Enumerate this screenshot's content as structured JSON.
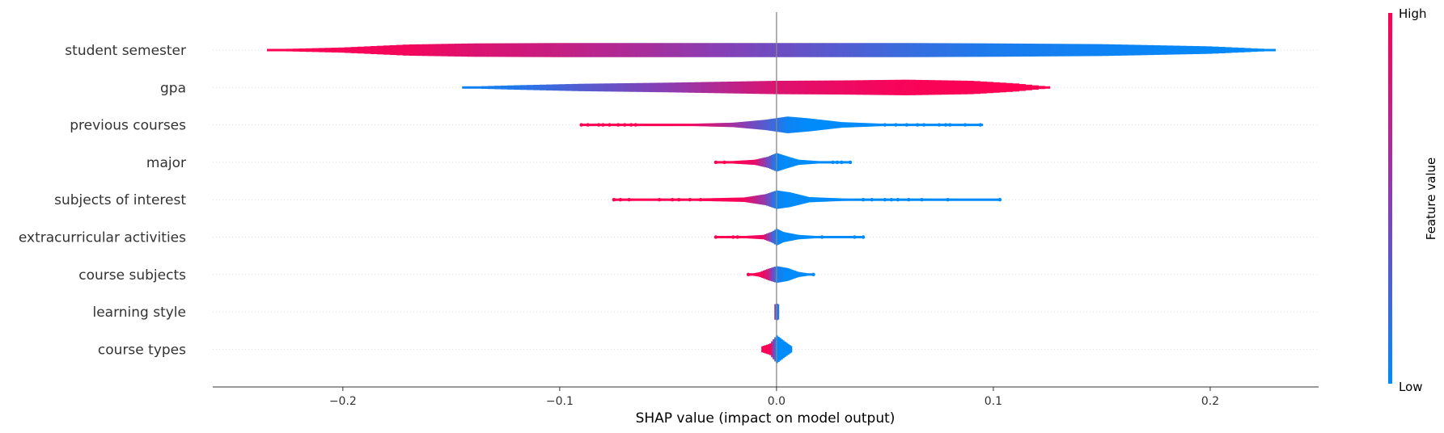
{
  "chart_data": {
    "type": "violin",
    "xlabel": "SHAP value (impact on model output)",
    "xlim": [
      -0.26,
      0.25
    ],
    "xticks": [
      -0.2,
      -0.1,
      0.0,
      0.1,
      0.2
    ],
    "xtick_labels": [
      "−0.2",
      "−0.1",
      "0.0",
      "0.1",
      "0.2"
    ],
    "colorbar": {
      "label": "Feature value",
      "high_label": "High",
      "low_label": "Low",
      "low_color": "#008bfb",
      "mid_color": "#8b3db3",
      "high_color": "#ff0052"
    },
    "features": [
      {
        "name": "student semester",
        "min": -0.235,
        "max": 0.23,
        "style": "band",
        "profile": [
          [
            -0.235,
            0.04,
            1.0
          ],
          [
            -0.2,
            0.14,
            0.97
          ],
          [
            -0.17,
            0.3,
            0.95
          ],
          [
            -0.14,
            0.36,
            0.85
          ],
          [
            -0.1,
            0.38,
            0.75
          ],
          [
            -0.06,
            0.38,
            0.62
          ],
          [
            -0.03,
            0.38,
            0.5
          ],
          [
            0.0,
            0.38,
            0.4
          ],
          [
            0.03,
            0.38,
            0.3
          ],
          [
            0.06,
            0.38,
            0.2
          ],
          [
            0.1,
            0.36,
            0.1
          ],
          [
            0.15,
            0.32,
            0.05
          ],
          [
            0.2,
            0.2,
            0.02
          ],
          [
            0.23,
            0.04,
            0.0
          ]
        ]
      },
      {
        "name": "gpa",
        "min": -0.145,
        "max": 0.126,
        "style": "band",
        "profile": [
          [
            -0.145,
            0.04,
            0.05
          ],
          [
            -0.12,
            0.12,
            0.12
          ],
          [
            -0.09,
            0.2,
            0.3
          ],
          [
            -0.05,
            0.26,
            0.5
          ],
          [
            -0.02,
            0.32,
            0.72
          ],
          [
            0.0,
            0.36,
            0.85
          ],
          [
            0.03,
            0.38,
            0.92
          ],
          [
            0.06,
            0.42,
            0.97
          ],
          [
            0.09,
            0.36,
            0.98
          ],
          [
            0.11,
            0.22,
            1.0
          ],
          [
            0.126,
            0.04,
            1.0
          ]
        ]
      },
      {
        "name": "previous courses",
        "min": -0.09,
        "max": 0.095,
        "style": "violin",
        "profile": [
          [
            -0.09,
            0.02,
            1.0
          ],
          [
            -0.06,
            0.04,
            1.0
          ],
          [
            -0.04,
            0.06,
            0.95
          ],
          [
            -0.02,
            0.12,
            0.6
          ],
          [
            -0.005,
            0.28,
            0.3
          ],
          [
            0.005,
            0.45,
            0.05
          ],
          [
            0.015,
            0.35,
            0.0
          ],
          [
            0.03,
            0.15,
            0.0
          ],
          [
            0.05,
            0.06,
            0.0
          ],
          [
            0.07,
            0.04,
            0.0
          ],
          [
            0.095,
            0.02,
            0.0
          ]
        ],
        "outliers": [
          [
            -0.09,
            1
          ],
          [
            -0.087,
            1
          ],
          [
            -0.082,
            1
          ],
          [
            -0.08,
            1
          ],
          [
            -0.077,
            1
          ],
          [
            -0.073,
            1
          ],
          [
            -0.07,
            1
          ],
          [
            -0.067,
            1
          ],
          [
            -0.065,
            1
          ],
          [
            0.05,
            0
          ],
          [
            0.055,
            0
          ],
          [
            0.06,
            0
          ],
          [
            0.065,
            0
          ],
          [
            0.068,
            0
          ],
          [
            0.075,
            0
          ],
          [
            0.078,
            0
          ],
          [
            0.08,
            0
          ],
          [
            0.087,
            0
          ],
          [
            0.094,
            0
          ]
        ]
      },
      {
        "name": "major",
        "min": -0.028,
        "max": 0.034,
        "style": "violin",
        "profile": [
          [
            -0.028,
            0.02,
            1.0
          ],
          [
            -0.02,
            0.07,
            1.0
          ],
          [
            -0.01,
            0.14,
            0.9
          ],
          [
            -0.004,
            0.3,
            0.4
          ],
          [
            0.0,
            0.5,
            0.05
          ],
          [
            0.004,
            0.35,
            0.0
          ],
          [
            0.01,
            0.14,
            0.0
          ],
          [
            0.02,
            0.06,
            0.0
          ],
          [
            0.034,
            0.02,
            0.0
          ]
        ],
        "outliers": [
          [
            -0.028,
            1
          ],
          [
            -0.024,
            1
          ],
          [
            0.026,
            0
          ],
          [
            0.028,
            0
          ],
          [
            0.03,
            0
          ],
          [
            0.034,
            0
          ]
        ]
      },
      {
        "name": "subjects of interest",
        "min": -0.075,
        "max": 0.103,
        "style": "violin",
        "profile": [
          [
            -0.075,
            0.02,
            1.0
          ],
          [
            -0.05,
            0.04,
            1.0
          ],
          [
            -0.03,
            0.08,
            1.0
          ],
          [
            -0.015,
            0.12,
            0.95
          ],
          [
            -0.005,
            0.3,
            0.5
          ],
          [
            0.0,
            0.5,
            0.05
          ],
          [
            0.006,
            0.4,
            0.0
          ],
          [
            0.015,
            0.14,
            0.0
          ],
          [
            0.03,
            0.07,
            0.0
          ],
          [
            0.05,
            0.04,
            0.0
          ],
          [
            0.103,
            0.02,
            0.0
          ]
        ],
        "outliers": [
          [
            -0.075,
            1
          ],
          [
            -0.072,
            1
          ],
          [
            -0.068,
            1
          ],
          [
            -0.054,
            1
          ],
          [
            -0.048,
            1
          ],
          [
            -0.045,
            1
          ],
          [
            -0.04,
            1
          ],
          [
            -0.035,
            1
          ],
          [
            0.04,
            0
          ],
          [
            0.044,
            0
          ],
          [
            0.05,
            0
          ],
          [
            0.053,
            0
          ],
          [
            0.056,
            0
          ],
          [
            0.061,
            0
          ],
          [
            0.067,
            0
          ],
          [
            0.079,
            0
          ],
          [
            0.103,
            0
          ]
        ]
      },
      {
        "name": "extracurricular activities",
        "min": -0.028,
        "max": 0.04,
        "style": "violin",
        "profile": [
          [
            -0.028,
            0.02,
            1.0
          ],
          [
            -0.015,
            0.06,
            1.0
          ],
          [
            -0.006,
            0.12,
            0.9
          ],
          [
            -0.002,
            0.3,
            0.3
          ],
          [
            0.0,
            0.45,
            0.05
          ],
          [
            0.003,
            0.28,
            0.0
          ],
          [
            0.01,
            0.12,
            0.0
          ],
          [
            0.02,
            0.05,
            0.0
          ],
          [
            0.04,
            0.02,
            0.0
          ]
        ],
        "outliers": [
          [
            -0.028,
            1
          ],
          [
            -0.02,
            1
          ],
          [
            -0.018,
            1
          ],
          [
            0.021,
            0
          ],
          [
            0.036,
            0
          ],
          [
            0.04,
            0
          ]
        ]
      },
      {
        "name": "course subjects",
        "min": -0.013,
        "max": 0.017,
        "style": "violin",
        "profile": [
          [
            -0.013,
            0.02,
            1.0
          ],
          [
            -0.008,
            0.12,
            1.0
          ],
          [
            -0.004,
            0.3,
            0.8
          ],
          [
            0.0,
            0.45,
            0.1
          ],
          [
            0.005,
            0.35,
            0.0
          ],
          [
            0.01,
            0.14,
            0.0
          ],
          [
            0.017,
            0.02,
            0.0
          ]
        ],
        "outliers": [
          [
            -0.013,
            1
          ],
          [
            0.017,
            0
          ]
        ]
      },
      {
        "name": "learning style",
        "min": -0.001,
        "max": 0.001,
        "style": "violin",
        "profile": [
          [
            -0.001,
            0.4,
            0.5
          ],
          [
            0.0,
            0.45,
            0.3
          ],
          [
            0.001,
            0.4,
            0.0
          ]
        ]
      },
      {
        "name": "course types",
        "min": -0.007,
        "max": 0.007,
        "style": "violin",
        "profile": [
          [
            -0.007,
            0.15,
            1.0
          ],
          [
            -0.003,
            0.3,
            1.0
          ],
          [
            0.0,
            0.75,
            0.0
          ],
          [
            0.004,
            0.4,
            0.0
          ],
          [
            0.007,
            0.15,
            0.0
          ]
        ]
      }
    ]
  }
}
